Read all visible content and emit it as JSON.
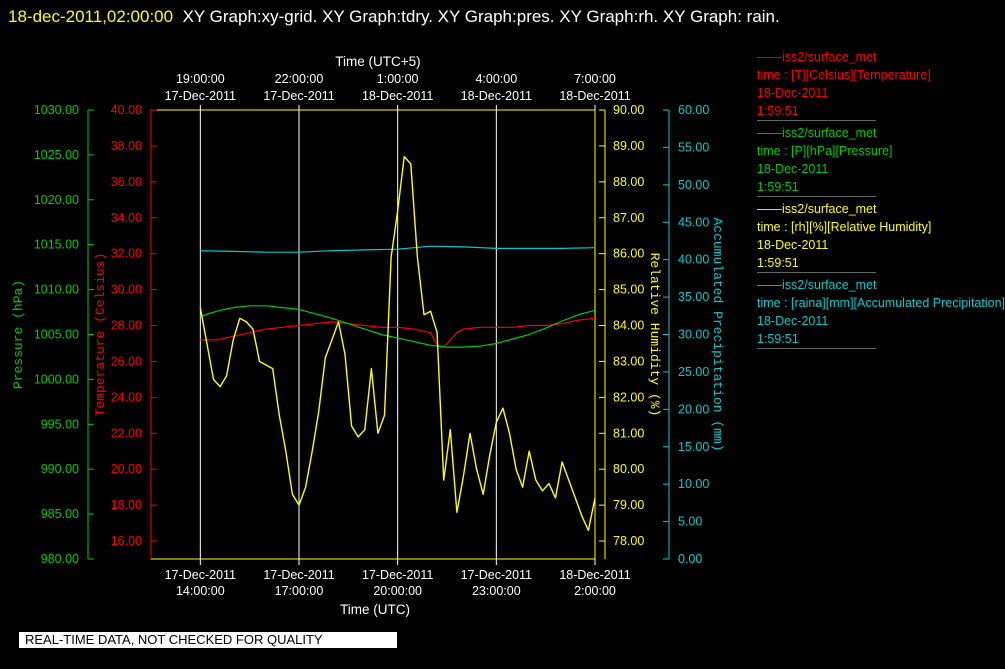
{
  "header": {
    "timestamp": "18-dec-2011,02:00:00",
    "graph_list": "XY Graph:xy-grid.  XY Graph:tdry.  XY Graph:pres.  XY Graph:rh.  XY Graph: rain."
  },
  "notice": "REAL-TIME DATA, NOT CHECKED FOR QUALITY",
  "legend": [
    {
      "series": "iss2/surface_met",
      "desc": "time : [T][Celsius][Temperature]",
      "date": "18-Dec-2011",
      "time": "1:59:51",
      "color": "#ff0000"
    },
    {
      "series": "iss2/surface_met",
      "desc": "time : [P][hPa][Pressure]",
      "date": "18-Dec-2011",
      "time": "1:59:51",
      "color": "#00cc00"
    },
    {
      "series": "iss2/surface_met",
      "desc": "time : [rh][%][Relative Humidity]",
      "date": "18-Dec-2011",
      "time": "1:59:51",
      "color": "#ffff00"
    },
    {
      "series": "iss2/surface_met",
      "desc": "time : [raina][mm][Accumulated Precipitation]",
      "date": "18-Dec-2011",
      "time": "1:59:51",
      "color": "#00cccc"
    }
  ],
  "chart_data": {
    "type": "line",
    "grid": true,
    "x_axis_bottom": {
      "label": "Time (UTC)",
      "ticks": [
        {
          "date": "17-Dec-2011",
          "time": "14:00:00",
          "hours": 0
        },
        {
          "date": "17-Dec-2011",
          "time": "17:00:00",
          "hours": 3
        },
        {
          "date": "17-Dec-2011",
          "time": "20:00:00",
          "hours": 6
        },
        {
          "date": "17-Dec-2011",
          "time": "23:00:00",
          "hours": 9
        },
        {
          "date": "18-Dec-2011",
          "time": "2:00:00",
          "hours": 12
        }
      ],
      "range_hours": [
        -1.5,
        12
      ]
    },
    "x_axis_top": {
      "label": "Time (UTC+5)",
      "ticks": [
        {
          "time": "19:00:00",
          "date": "17-Dec-2011",
          "hours": 0
        },
        {
          "time": "22:00:00",
          "date": "17-Dec-2011",
          "hours": 3
        },
        {
          "time": "1:00:00",
          "date": "18-Dec-2011",
          "hours": 6
        },
        {
          "time": "4:00:00",
          "date": "18-Dec-2011",
          "hours": 9
        },
        {
          "time": "7:00:00",
          "date": "18-Dec-2011",
          "hours": 12
        }
      ]
    },
    "axes": {
      "pressure": {
        "label": "Pressure (hPa)",
        "color": "#00cc00",
        "min": 980,
        "max": 1030,
        "step": 5,
        "decimals": 2
      },
      "temperature": {
        "label": "Temperature (Celsius)",
        "color": "#ff0000",
        "min": 15,
        "max": 40,
        "tick_start": 16,
        "step": 2,
        "decimals": 2
      },
      "humidity": {
        "label": "Relative Humidity (%)",
        "color": "#ffff00",
        "min": 77.5,
        "max": 90,
        "tick_start": 78,
        "step": 1,
        "decimals": 2
      },
      "precipitation": {
        "label": "Accumulated Precipitation (mm)",
        "color": "#00cccc",
        "min": 0,
        "max": 60,
        "step": 5,
        "decimals": 2
      }
    },
    "series": [
      {
        "name": "Temperature",
        "axis": "temperature",
        "color": "#ff0000",
        "x": [
          0,
          0.5,
          1,
          1.5,
          2,
          2.5,
          3,
          3.5,
          4,
          4.5,
          5,
          5.5,
          6,
          6.5,
          7,
          7.2,
          7.4,
          7.6,
          7.8,
          8,
          8.5,
          9,
          9.5,
          10,
          10.5,
          11,
          11.5,
          12
        ],
        "values": [
          27.2,
          27.2,
          27.4,
          27.6,
          27.8,
          27.9,
          28.0,
          28.1,
          28.2,
          28.1,
          28.0,
          27.9,
          27.9,
          27.8,
          27.6,
          26.9,
          26.8,
          27.2,
          27.6,
          27.8,
          27.9,
          27.9,
          27.9,
          28.0,
          28.0,
          28.1,
          28.3,
          28.4
        ]
      },
      {
        "name": "Pressure",
        "axis": "pressure",
        "color": "#00cc00",
        "x": [
          0,
          0.5,
          1,
          1.5,
          2,
          2.5,
          3,
          3.5,
          4,
          4.5,
          5,
          5.5,
          6,
          6.5,
          7,
          7.5,
          8,
          8.5,
          9,
          9.5,
          10,
          10.5,
          11,
          11.5,
          12
        ],
        "values": [
          1007.0,
          1007.6,
          1008.0,
          1008.2,
          1008.2,
          1008.0,
          1007.8,
          1007.3,
          1006.8,
          1006.2,
          1005.6,
          1005.0,
          1004.6,
          1004.2,
          1003.8,
          1003.6,
          1003.6,
          1003.7,
          1004.0,
          1004.5,
          1005.0,
          1005.7,
          1006.5,
          1007.2,
          1007.7
        ]
      },
      {
        "name": "Relative Humidity",
        "axis": "humidity",
        "color": "#ffff00",
        "x": [
          0,
          0.2,
          0.4,
          0.6,
          0.8,
          1.0,
          1.2,
          1.4,
          1.6,
          1.8,
          2.0,
          2.2,
          2.4,
          2.6,
          2.8,
          3.0,
          3.2,
          3.4,
          3.6,
          3.8,
          4.0,
          4.2,
          4.4,
          4.6,
          4.8,
          5.0,
          5.2,
          5.4,
          5.6,
          5.8,
          6.0,
          6.2,
          6.4,
          6.6,
          6.8,
          7.0,
          7.2,
          7.4,
          7.6,
          7.8,
          8.0,
          8.2,
          8.4,
          8.6,
          8.8,
          9.0,
          9.2,
          9.4,
          9.6,
          9.8,
          10.0,
          10.2,
          10.4,
          10.6,
          10.8,
          11.0,
          11.2,
          11.4,
          11.6,
          11.8,
          12.0
        ],
        "values": [
          84.5,
          83.5,
          82.5,
          82.3,
          82.6,
          83.6,
          84.2,
          84.1,
          83.9,
          83.0,
          82.9,
          82.8,
          81.5,
          80.5,
          79.3,
          79.0,
          79.5,
          80.5,
          81.6,
          83.1,
          83.6,
          84.1,
          83.2,
          81.2,
          80.9,
          81.1,
          82.8,
          81.0,
          81.5,
          85.9,
          87.2,
          88.7,
          88.5,
          85.9,
          84.3,
          84.4,
          83.8,
          79.7,
          81.1,
          78.8,
          79.8,
          81.0,
          80.0,
          79.3,
          80.4,
          81.3,
          81.7,
          81.0,
          80.0,
          79.5,
          80.5,
          79.7,
          79.4,
          79.6,
          79.2,
          80.2,
          79.7,
          79.2,
          78.7,
          78.3,
          79.2
        ]
      },
      {
        "name": "Accumulated Precipitation",
        "axis": "precipitation",
        "color": "#00cccc",
        "x": [
          0,
          1,
          2,
          3,
          4,
          5,
          6,
          6.5,
          7,
          8,
          9,
          10,
          11,
          12
        ],
        "values": [
          41.2,
          41.1,
          41.0,
          41.0,
          41.2,
          41.3,
          41.4,
          41.6,
          41.8,
          41.7,
          41.5,
          41.5,
          41.5,
          41.6
        ]
      }
    ]
  }
}
